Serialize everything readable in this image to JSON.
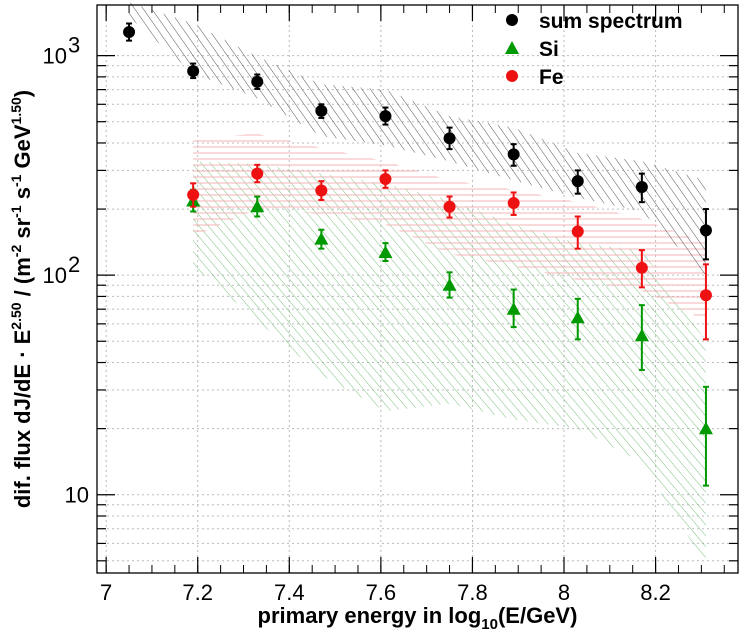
{
  "chart_data": {
    "type": "scatter",
    "title": "",
    "xlabel": "primary energy in log",
    "xlabel_sub": "10",
    "xlabel_tail": "(E/GeV)",
    "ylabel": "dif. flux dJ/dE · E",
    "ylabel_exp": "2.50",
    "ylabel_mid": " / (m",
    "ylabel_units": [
      {
        "base": " / (m",
        "exp": "-2"
      },
      {
        "base": " sr",
        "exp": "-1"
      },
      {
        "base": " s",
        "exp": "-1"
      },
      {
        "base": " GeV",
        "exp": "1.50"
      },
      {
        "base": ")",
        "exp": ""
      }
    ],
    "xlim": [
      6.98,
      8.38
    ],
    "ylim": [
      4.4,
      1700
    ],
    "yscale": "log",
    "grid": true,
    "legend_position": "top-right",
    "x_ticks": [
      7,
      7.2,
      7.4,
      7.6,
      7.8,
      8,
      8.2
    ],
    "x_tick_labels": [
      "7",
      "7.2",
      "7.4",
      "7.6",
      "7.8",
      "8",
      "8.2"
    ],
    "y_ticks": [
      10,
      100,
      1000
    ],
    "y_tick_labels": [
      "10",
      "10",
      "10"
    ],
    "y_tick_exps": [
      "",
      "2",
      "3"
    ],
    "series": [
      {
        "name": "sum spectrum",
        "color": "#000000",
        "marker": "circle",
        "x": [
          7.05,
          7.19,
          7.33,
          7.47,
          7.61,
          7.75,
          7.89,
          8.03,
          8.17,
          8.31
        ],
        "y": [
          1280,
          850,
          760,
          560,
          530,
          420,
          355,
          268,
          252,
          160
        ],
        "err_low": [
          1170,
          790,
          705,
          520,
          485,
          375,
          315,
          235,
          215,
          118
        ],
        "err_high": [
          1400,
          920,
          820,
          600,
          580,
          470,
          395,
          300,
          290,
          200
        ],
        "band_low": [
          1500,
          830,
          640,
          430,
          390,
          330,
          270,
          225,
          195,
          100
        ],
        "band_high": [
          1750,
          1400,
          990,
          740,
          700,
          530,
          470,
          360,
          330,
          270
        ]
      },
      {
        "name": "Si",
        "color": "#009900",
        "marker": "triangle",
        "x": [
          7.19,
          7.33,
          7.47,
          7.61,
          7.75,
          7.89,
          8.03,
          8.17,
          8.31
        ],
        "y": [
          218,
          205,
          146,
          127,
          90,
          70,
          64,
          53,
          20
        ],
        "err_low": [
          195,
          185,
          132,
          116,
          79,
          58,
          51,
          37,
          11
        ],
        "err_high": [
          245,
          228,
          161,
          140,
          103,
          86,
          78,
          73,
          31
        ],
        "band_low": [
          110,
          62,
          35,
          24,
          26,
          22,
          20,
          14,
          4.8
        ],
        "band_high": [
          330,
          320,
          290,
          260,
          220,
          170,
          140,
          130,
          50
        ]
      },
      {
        "name": "Fe",
        "color": "#ee1111",
        "marker": "circle",
        "x": [
          7.19,
          7.33,
          7.47,
          7.61,
          7.75,
          7.89,
          8.03,
          8.17,
          8.31
        ],
        "y": [
          232,
          290,
          243,
          274,
          205,
          213,
          158,
          108,
          81
        ],
        "err_low": [
          205,
          265,
          220,
          250,
          183,
          188,
          132,
          88,
          51
        ],
        "err_high": [
          262,
          318,
          268,
          300,
          228,
          238,
          185,
          130,
          112
        ],
        "band_low": [
          150,
          200,
          190,
          170,
          125,
          110,
          95,
          85,
          62
        ],
        "band_high": [
          420,
          440,
          380,
          330,
          270,
          245,
          215,
          180,
          140
        ]
      }
    ]
  }
}
